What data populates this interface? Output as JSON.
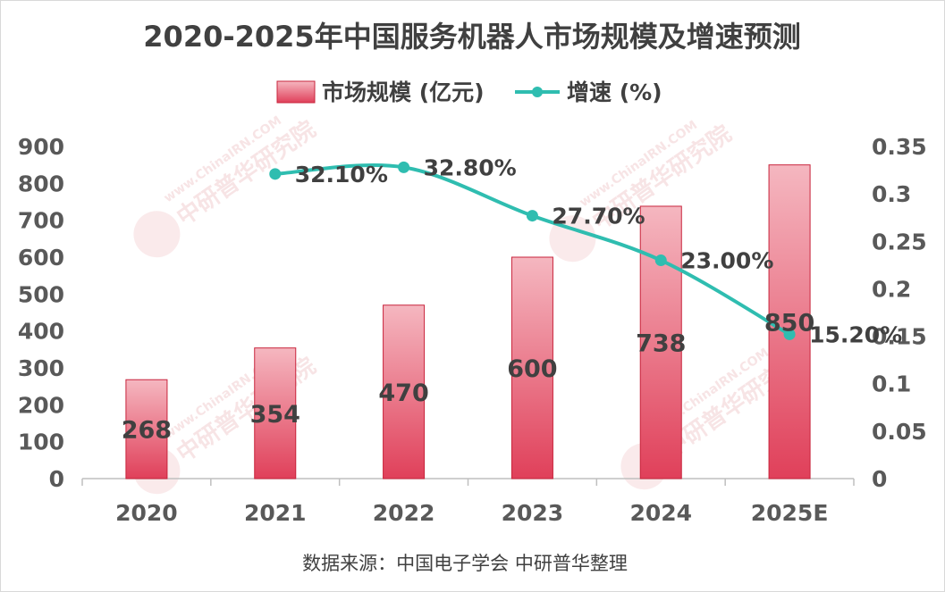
{
  "chart_data": {
    "type": "bar",
    "title": "2020-2025年中国服务机器人市场规模及增速预测",
    "categories": [
      "2020",
      "2021",
      "2022",
      "2023",
      "2024",
      "2025E"
    ],
    "series": [
      {
        "name": "市场规模 (亿元)",
        "kind": "bar",
        "axis": "left",
        "values": [
          268,
          354,
          470,
          600,
          738,
          850
        ],
        "labels": [
          "268",
          "354",
          "470",
          "600",
          "738",
          "850"
        ]
      },
      {
        "name": "增速 (%)",
        "kind": "line",
        "axis": "right",
        "values": [
          null,
          0.321,
          0.328,
          0.277,
          0.23,
          0.152
        ],
        "labels": [
          "",
          "32.10%",
          "32.80%",
          "27.70%",
          "23.00%",
          "15.20%"
        ]
      }
    ],
    "y_left": {
      "min": 0,
      "max": 900,
      "ticks": [
        "0",
        "100",
        "200",
        "300",
        "400",
        "500",
        "600",
        "700",
        "800",
        "900"
      ]
    },
    "y_right": {
      "min": 0,
      "max": 0.35,
      "ticks": [
        "0",
        "0.05",
        "0.1",
        "0.15",
        "0.2",
        "0.25",
        "0.3",
        "0.35"
      ]
    },
    "legend_position": "top-center",
    "grid": false,
    "colors": {
      "bar_top": "#f5b7c0",
      "bar_bottom": "#e0405a",
      "bar_border": "#c8243c",
      "line": "#2fbdb0",
      "axis": "#bfbfbf"
    }
  },
  "source_note": "数据来源：中国电子学会 中研普华整理",
  "watermark": {
    "brand": "中研普华研究院",
    "url": "www.ChinaIRN.COM",
    "logo": "CIRN"
  }
}
